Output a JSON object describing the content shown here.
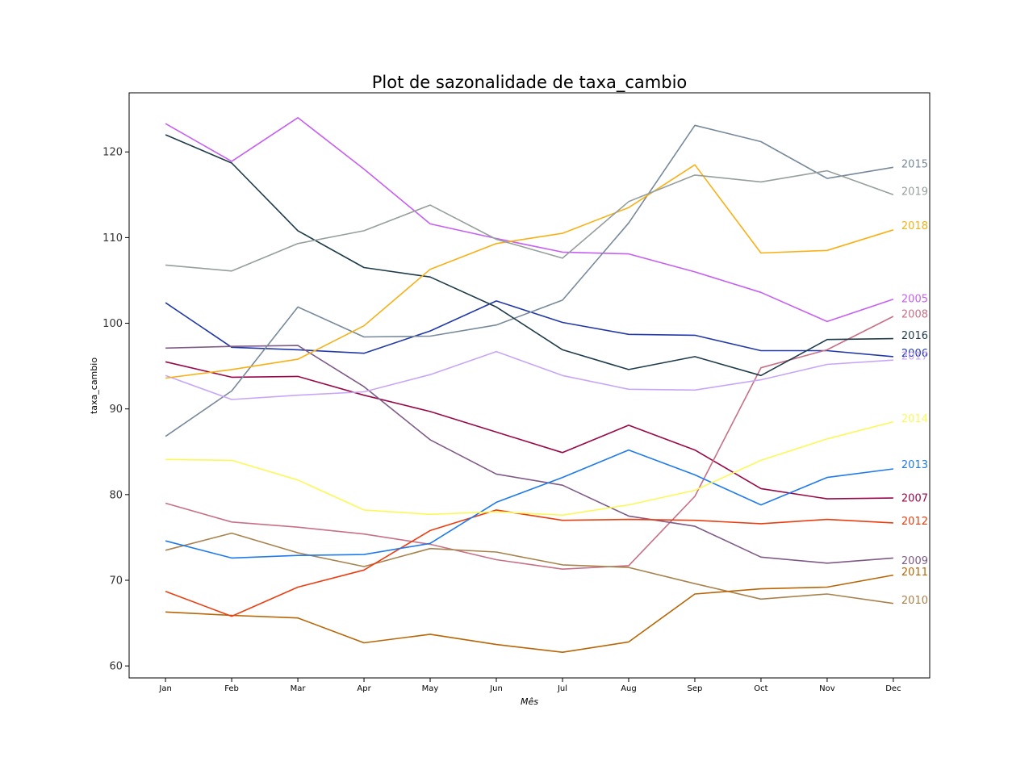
{
  "chart_data": {
    "type": "line",
    "title": "Plot de sazonalidade de taxa_cambio",
    "xlabel": "Mês",
    "ylabel": "taxa_cambio",
    "categories": [
      "Jan",
      "Feb",
      "Mar",
      "Apr",
      "May",
      "Jun",
      "Jul",
      "Aug",
      "Sep",
      "Oct",
      "Nov",
      "Dec"
    ],
    "xlim": [
      -0.55,
      11.55
    ],
    "ylim": [
      58.6,
      126.9
    ],
    "yticks": [
      60,
      70,
      80,
      90,
      100,
      110,
      120
    ],
    "grid": false,
    "legend": "none",
    "label_placement": "end-of-line",
    "series": [
      {
        "name": "2005",
        "color": "#c65ff2",
        "values": [
          123.3,
          118.9,
          124.0,
          118.0,
          111.6,
          109.9,
          108.3,
          108.1,
          106.0,
          103.6,
          100.2,
          102.8
        ],
        "label_value": 102.9
      },
      {
        "name": "2006",
        "color": "#2038a8",
        "values": [
          102.4,
          97.2,
          96.9,
          96.5,
          99.1,
          102.6,
          100.1,
          98.7,
          98.6,
          96.8,
          96.8,
          96.1
        ],
        "label_value": 96.5
      },
      {
        "name": "2007",
        "color": "#980848",
        "values": [
          95.5,
          93.7,
          93.8,
          91.6,
          89.7,
          87.3,
          84.9,
          88.1,
          85.2,
          80.7,
          79.5,
          79.6
        ],
        "label_value": 79.6
      },
      {
        "name": "2008",
        "color": "#c77086",
        "values": [
          79.0,
          76.8,
          76.2,
          75.4,
          74.2,
          72.4,
          71.3,
          71.7,
          79.8,
          94.8,
          96.9,
          100.8
        ],
        "label_value": 101.1
      },
      {
        "name": "2009",
        "color": "#7f5a87",
        "values": [
          97.1,
          97.3,
          97.4,
          92.6,
          86.4,
          82.4,
          81.1,
          77.5,
          76.3,
          72.7,
          72.0,
          72.6
        ],
        "label_value": 72.3
      },
      {
        "name": "2010",
        "color": "#a8824c",
        "values": [
          73.5,
          75.5,
          73.2,
          71.6,
          73.7,
          73.3,
          71.8,
          71.5,
          69.6,
          67.8,
          68.4,
          67.3
        ],
        "label_value": 67.7
      },
      {
        "name": "2011",
        "color": "#b86505",
        "values": [
          66.3,
          65.9,
          65.6,
          62.7,
          63.7,
          62.5,
          61.6,
          62.8,
          68.4,
          69.0,
          69.2,
          70.6
        ],
        "label_value": 71.0
      },
      {
        "name": "2012",
        "color": "#eb3d0f",
        "values": [
          68.7,
          65.8,
          69.2,
          71.2,
          75.8,
          78.2,
          77.0,
          77.1,
          77.0,
          76.6,
          77.1,
          76.7
        ],
        "label_value": 76.9
      },
      {
        "name": "2013",
        "color": "#1f7aeb",
        "values": [
          74.6,
          72.6,
          72.9,
          73.0,
          74.3,
          79.1,
          82.0,
          85.2,
          82.3,
          78.8,
          82.0,
          83.0
        ],
        "label_value": 83.5
      },
      {
        "name": "2014",
        "color": "#fbf95a",
        "values": [
          84.1,
          84.0,
          81.7,
          78.2,
          77.7,
          78.0,
          77.6,
          78.8,
          80.5,
          84.0,
          86.5,
          88.5
        ],
        "label_value": 88.9
      },
      {
        "name": "2015",
        "color": "#77899a",
        "values": [
          86.8,
          92.1,
          101.9,
          98.4,
          98.5,
          99.8,
          102.7,
          111.7,
          123.1,
          121.2,
          116.9,
          118.2
        ],
        "label_value": 118.6
      },
      {
        "name": "2016",
        "color": "#1e3b4a",
        "values": [
          122.0,
          118.7,
          110.8,
          106.5,
          105.4,
          101.9,
          96.9,
          94.6,
          96.1,
          93.9,
          98.1,
          98.2
        ],
        "label_value": 98.6
      },
      {
        "name": "2017",
        "color": "#c7a6f8",
        "values": [
          93.9,
          91.1,
          91.6,
          92.0,
          94.0,
          96.7,
          93.9,
          92.3,
          92.2,
          93.4,
          95.2,
          95.7
        ],
        "label_value": 96.2
      },
      {
        "name": "2018",
        "color": "#f7b016",
        "values": [
          93.6,
          94.6,
          95.8,
          99.7,
          106.3,
          109.3,
          110.5,
          113.5,
          118.5,
          108.2,
          108.5,
          110.9
        ],
        "label_value": 111.4
      },
      {
        "name": "2019",
        "color": "#959f9c",
        "values": [
          106.8,
          106.1,
          109.3,
          110.8,
          113.8,
          109.8,
          107.6,
          114.2,
          117.3,
          116.5,
          117.8,
          115.0
        ],
        "label_value": 115.4
      }
    ]
  }
}
